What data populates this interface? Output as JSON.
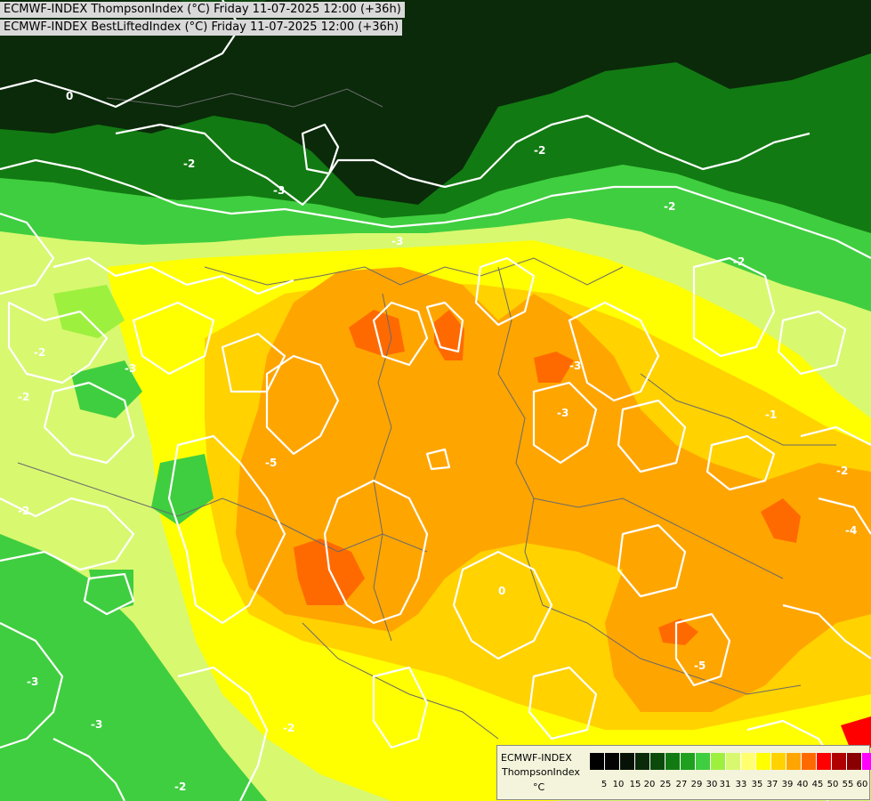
{
  "header": {
    "line1": "ECMWF-INDEX ThompsonIndex (°C) Friday 11-07-2025 12:00 (+36h)",
    "line2": "ECMWF-INDEX BestLiftedIndex (°C) Friday 11-07-2025 12:00 (+36h)"
  },
  "legend": {
    "model": "ECMWF-INDEX",
    "parameter": "ThompsonIndex",
    "unit": "°C",
    "colors": [
      "#000000",
      "#030303",
      "#061206",
      "#0a2a0a",
      "#0b4a0b",
      "#127a12",
      "#1fa01f",
      "#3fce3f",
      "#9ef03f",
      "#d8f870",
      "#ffff70",
      "#ffff00",
      "#ffd200",
      "#ffa500",
      "#ff6a00",
      "#ff0000",
      "#b00000",
      "#8a0000",
      "#ff00ff",
      "#cc00ff",
      "#9900ff",
      "#4f00ff",
      "#0000ff"
    ],
    "ticks": [
      "5",
      "10",
      "15",
      "20",
      "25",
      "27",
      "29",
      "30",
      "31",
      "33",
      "35",
      "37",
      "39",
      "40",
      "45",
      "50",
      "55",
      "60"
    ]
  },
  "map": {
    "contour_labels": [
      "0",
      "-2",
      "-3",
      "-2",
      "-3",
      "-2",
      "-2",
      "-2",
      "-3",
      "-3",
      "-3",
      "-2",
      "-4",
      "-5",
      "-3",
      "-2",
      "-2",
      "0",
      "-3",
      "-1",
      "-2",
      "-5",
      "-2"
    ]
  }
}
